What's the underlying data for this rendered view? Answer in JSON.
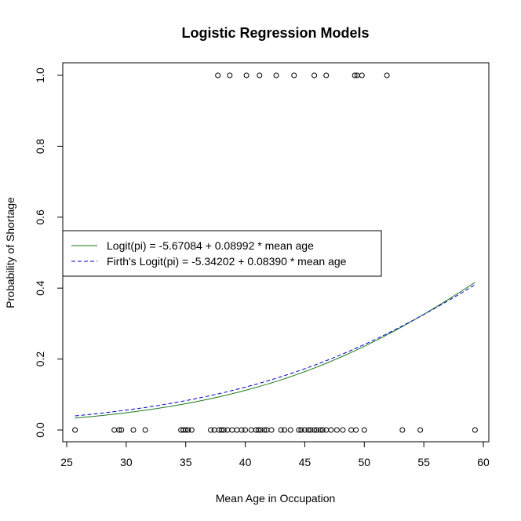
{
  "chart_data": {
    "type": "scatter",
    "title": "Logistic Regression Models",
    "xlabel": "Mean Age in Occupation",
    "ylabel": "Probability of Shortage",
    "xlim": [
      25,
      60
    ],
    "ylim": [
      0,
      1
    ],
    "xticks": [
      25,
      30,
      35,
      40,
      45,
      50,
      55,
      60
    ],
    "yticks": [
      0.0,
      0.2,
      0.4,
      0.6,
      0.8,
      1.0
    ],
    "ytick_labels": [
      "0.0",
      "0.2",
      "0.4",
      "0.6",
      "0.8",
      "1.0"
    ],
    "grid": false,
    "points_shortage": [
      37.7,
      38.7,
      40.1,
      41.2,
      42.6,
      44.1,
      45.8,
      46.8,
      49.2,
      49.4,
      49.8,
      51.9
    ],
    "points_no_shortage": [
      25.7,
      29.0,
      29.4,
      29.6,
      30.6,
      31.6,
      34.6,
      34.8,
      35.0,
      35.2,
      35.5,
      37.1,
      37.4,
      37.8,
      38.0,
      38.2,
      38.5,
      38.9,
      39.3,
      39.7,
      40.0,
      40.5,
      40.9,
      41.1,
      41.3,
      41.6,
      41.8,
      42.2,
      43.0,
      43.3,
      43.8,
      44.5,
      44.7,
      45.0,
      45.3,
      45.5,
      45.8,
      46.0,
      46.3,
      46.5,
      46.8,
      47.2,
      47.7,
      48.2,
      48.9,
      49.3,
      50.0,
      53.2,
      54.7,
      59.3
    ],
    "series": [
      {
        "name": "Logit(pi) = -5.67084 + 0.08992 * mean age",
        "type": "line",
        "color": "#1a7a1a",
        "dash": "solid",
        "intercept": -5.67084,
        "slope": 0.08992,
        "x_range": [
          25.7,
          59.3
        ]
      },
      {
        "name": "Firth's Logit(pi) = -5.34202 + 0.08390 * mean age",
        "type": "line",
        "color": "#0000cc",
        "dash": "dashed",
        "intercept": -5.34202,
        "slope": 0.0839,
        "x_range": [
          25.7,
          59.3
        ]
      }
    ],
    "legend_position": "center-left"
  }
}
